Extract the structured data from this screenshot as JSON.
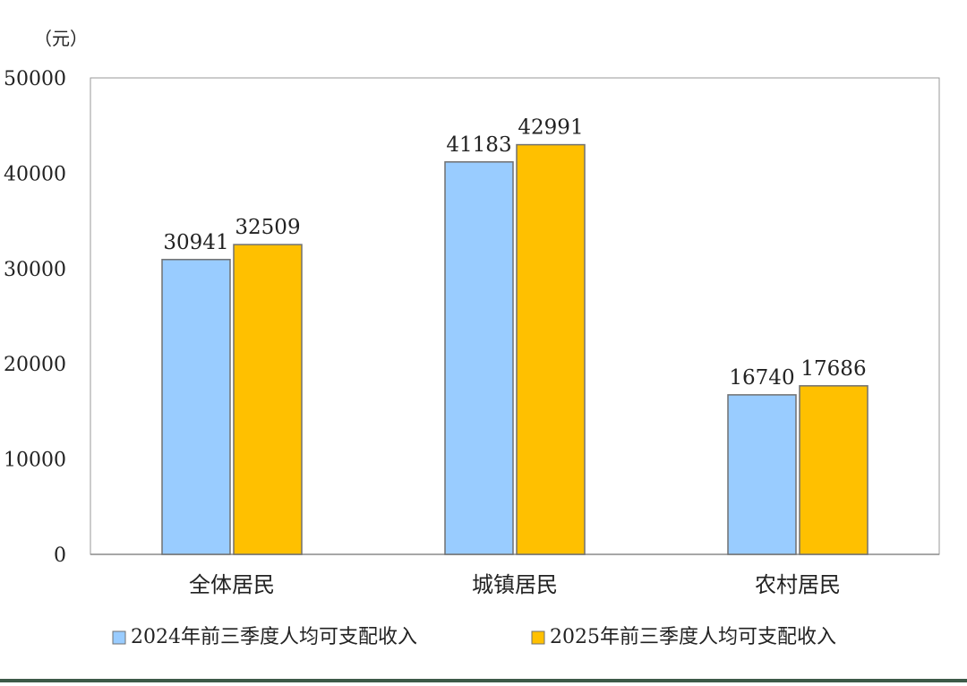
{
  "chart_data": {
    "type": "bar",
    "unit_label": "（元）",
    "categories": [
      "全体居民",
      "城镇居民",
      "农村居民"
    ],
    "series": [
      {
        "name": "2024年前三季度人均可支配收入",
        "color": "#99ccff",
        "values": [
          30941,
          41183,
          16740
        ]
      },
      {
        "name": "2025年前三季度人均可支配收入",
        "color": "#ffc000",
        "values": [
          32509,
          42991,
          17686
        ]
      }
    ],
    "ylim": [
      0,
      50000
    ],
    "yticks": [
      0,
      10000,
      20000,
      30000,
      40000,
      50000
    ],
    "grid": false,
    "legend_position": "bottom"
  }
}
